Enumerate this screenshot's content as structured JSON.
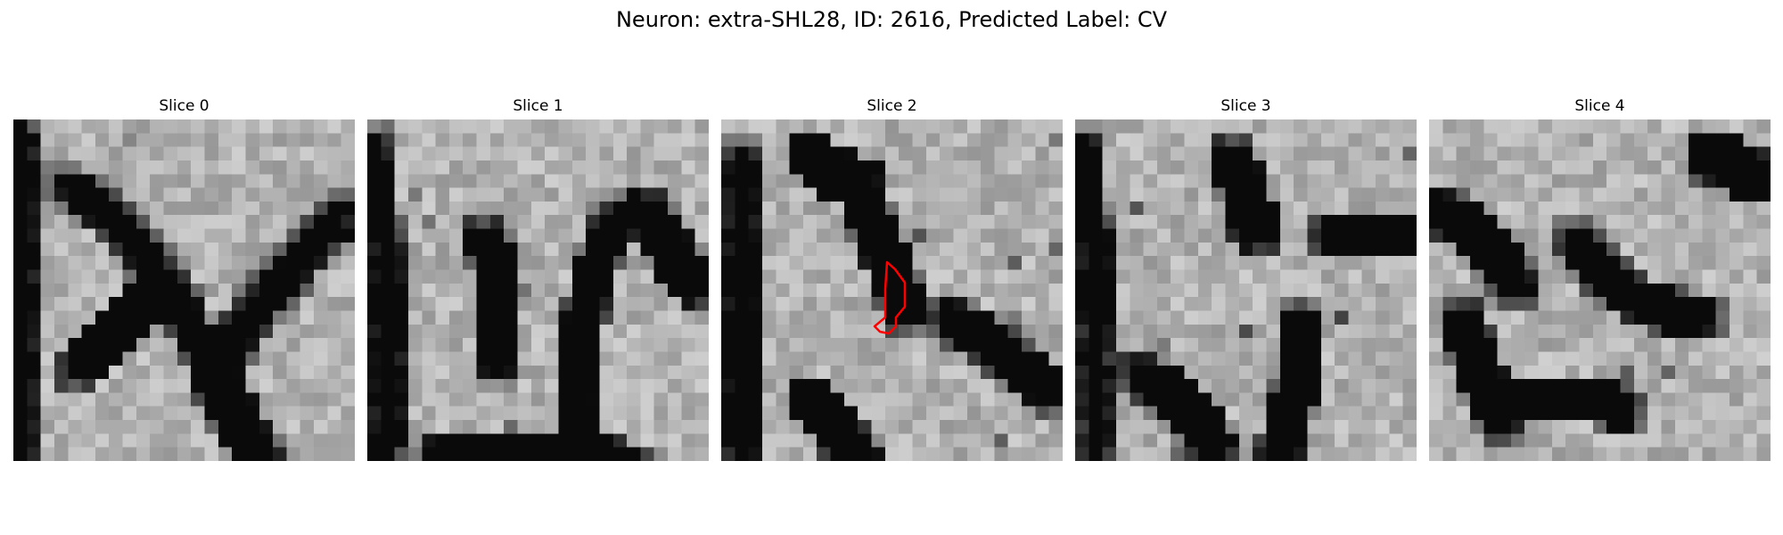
{
  "title": "Neuron: extra-SHL28, ID: 2616, Predicted Label: CV",
  "colormap": "gray",
  "outline_color": "#ff0000",
  "panels": [
    {
      "label": "Slice 0",
      "outlined": false
    },
    {
      "label": "Slice 1",
      "outlined": false
    },
    {
      "label": "Slice 2",
      "outlined": true
    },
    {
      "label": "Slice 3",
      "outlined": false
    },
    {
      "label": "Slice 4",
      "outlined": false
    }
  ]
}
